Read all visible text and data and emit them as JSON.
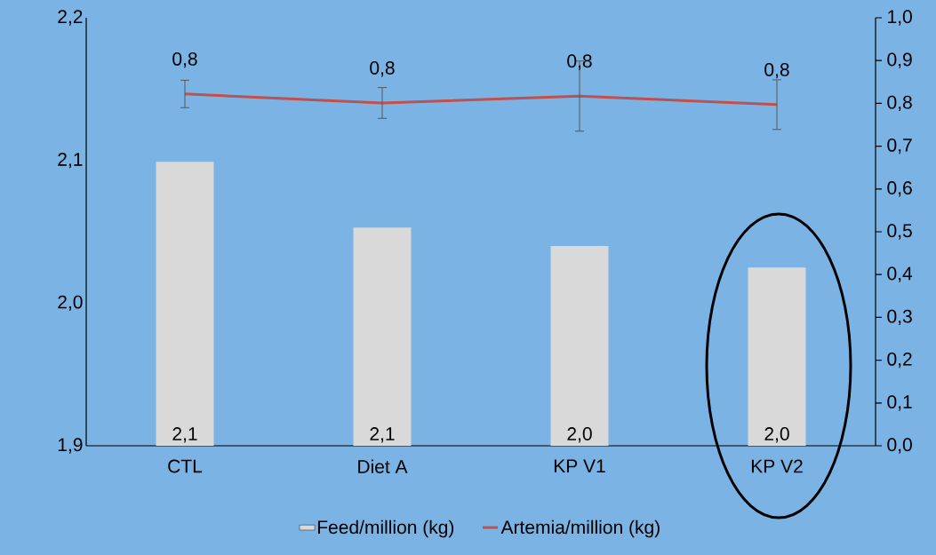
{
  "chart_data": {
    "type": "bar",
    "categories": [
      "CTL",
      "Diet A",
      "KP V1",
      "KP V2"
    ],
    "series": [
      {
        "name": "Feed/million (kg)",
        "color": "#d9d9d9",
        "values": [
          2.099,
          2.053,
          2.04,
          2.025
        ],
        "value_labels": [
          "2,1",
          "2,1",
          "2,0",
          "2,0"
        ]
      },
      {
        "name": "Artemia/million (kg)",
        "type": "line",
        "axis": "y2",
        "color": "#c0504d",
        "values": [
          0.822,
          0.801,
          0.817,
          0.797
        ],
        "errors": [
          0.032,
          0.036,
          0.082,
          0.058
        ],
        "value_labels": [
          "0,8",
          "0,8",
          "0,8",
          "0,8"
        ]
      }
    ],
    "ylim": [
      1.9,
      2.2
    ],
    "yticks": [
      {
        "value": 1.9,
        "label": "1,9"
      },
      {
        "value": 2.0,
        "label": "2,0"
      },
      {
        "value": 2.1,
        "label": "2,1"
      },
      {
        "value": 2.2,
        "label": "2,2"
      }
    ],
    "y2lim": [
      0,
      1
    ],
    "y2ticks": [
      {
        "value": 0,
        "label": "0,0"
      },
      {
        "value": 0.1,
        "label": "0,1"
      },
      {
        "value": 0.2,
        "label": "0,2"
      },
      {
        "value": 0.3,
        "label": "0,3"
      },
      {
        "value": 0.4,
        "label": "0,4"
      },
      {
        "value": 0.5,
        "label": "0,5"
      },
      {
        "value": 0.6,
        "label": "0,6"
      },
      {
        "value": 0.7,
        "label": "0,7"
      },
      {
        "value": 0.8,
        "label": "0,8"
      },
      {
        "value": 0.9,
        "label": "0,9"
      },
      {
        "value": 1.0,
        "label": "1,0"
      }
    ],
    "legend": "bottom"
  }
}
